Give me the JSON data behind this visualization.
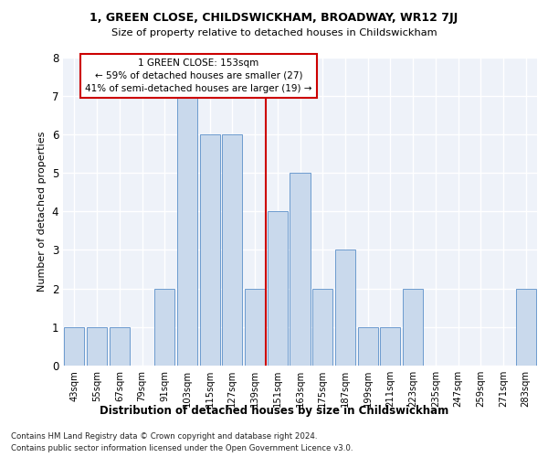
{
  "title": "1, GREEN CLOSE, CHILDSWICKHAM, BROADWAY, WR12 7JJ",
  "subtitle": "Size of property relative to detached houses in Childswickham",
  "xlabel": "Distribution of detached houses by size in Childswickham",
  "ylabel": "Number of detached properties",
  "bins": [
    "43sqm",
    "55sqm",
    "67sqm",
    "79sqm",
    "91sqm",
    "103sqm",
    "115sqm",
    "127sqm",
    "139sqm",
    "151sqm",
    "163sqm",
    "175sqm",
    "187sqm",
    "199sqm",
    "211sqm",
    "223sqm",
    "235sqm",
    "247sqm",
    "259sqm",
    "271sqm",
    "283sqm"
  ],
  "values": [
    1,
    1,
    1,
    0,
    2,
    7,
    6,
    6,
    2,
    4,
    5,
    2,
    3,
    1,
    1,
    2,
    0,
    0,
    0,
    0,
    2
  ],
  "bar_color": "#c9d9ec",
  "bar_edge_color": "#5b8fc9",
  "annotation_title": "1 GREEN CLOSE: 153sqm",
  "annotation_line1": "← 59% of detached houses are smaller (27)",
  "annotation_line2": "41% of semi-detached houses are larger (19) →",
  "annotation_box_color": "#cc0000",
  "ref_line_index": 9,
  "ylim": [
    0,
    8
  ],
  "yticks": [
    0,
    1,
    2,
    3,
    4,
    5,
    6,
    7,
    8
  ],
  "footer1": "Contains HM Land Registry data © Crown copyright and database right 2024.",
  "footer2": "Contains public sector information licensed under the Open Government Licence v3.0.",
  "bg_color": "#eef2f9",
  "grid_color": "#ffffff",
  "figure_bg": "#ffffff"
}
